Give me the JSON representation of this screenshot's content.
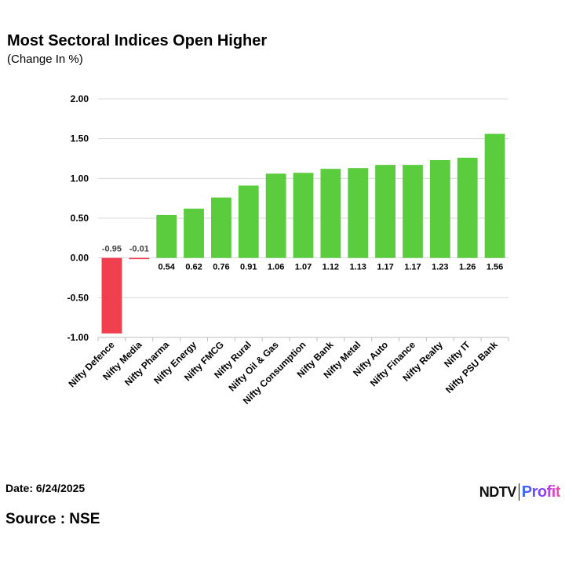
{
  "header": {
    "title": "Most Sectoral Indices Open Higher",
    "subtitle": "(Change In %)"
  },
  "footer": {
    "date": "Date: 6/24/2025",
    "source": "Source : NSE",
    "brand_left": "NDTV",
    "brand_right": "Profit"
  },
  "colors": {
    "positive": "#5ccc3f",
    "negative": "#f04050",
    "gridline": "#d9d9d9",
    "negative_label": "#404040"
  },
  "chart_data": {
    "type": "bar",
    "title": "Most Sectoral Indices Open Higher",
    "ylabel": "(Change In %)",
    "xlabel": "",
    "ylim": [
      -1.0,
      2.0
    ],
    "yticks": [
      "2.00",
      "1.50",
      "1.00",
      "0.50",
      "0.00",
      "-0.50",
      "-1.00"
    ],
    "ytick_values": [
      2.0,
      1.5,
      1.0,
      0.5,
      0.0,
      -0.5,
      -1.0
    ],
    "categories": [
      "Nifty Defence",
      "Nifty Media",
      "Nifty Pharma",
      "Nifty Energy",
      "Nifty FMCG",
      "Nifty Rural",
      "Nifty Oil & Gas",
      "Nifty Consumption",
      "Nifty Bank",
      "Nifty Metal",
      "Nifty Auto",
      "Nifty Finance",
      "Nifty Realty",
      "Nifty IT",
      "Nifty PSU Bank"
    ],
    "values": [
      -0.95,
      -0.01,
      0.54,
      0.62,
      0.76,
      0.91,
      1.06,
      1.07,
      1.12,
      1.13,
      1.17,
      1.17,
      1.23,
      1.26,
      1.56
    ],
    "value_labels": [
      "-0.95",
      "-0.01",
      "0.54",
      "0.62",
      "0.76",
      "0.91",
      "1.06",
      "1.07",
      "1.12",
      "1.13",
      "1.17",
      "1.17",
      "1.23",
      "1.26",
      "1.56"
    ],
    "grid": true,
    "legend": "none"
  }
}
